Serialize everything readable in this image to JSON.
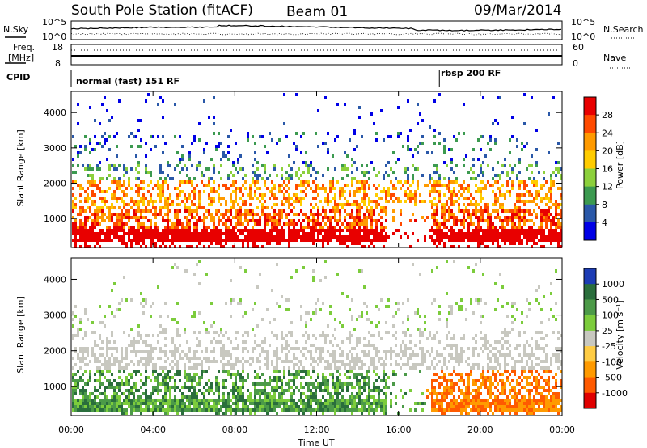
{
  "header": {
    "station": "South Pole Station (fitACF)",
    "beam": "Beam 01",
    "date": "09/Mar/2014"
  },
  "noise_panel": {
    "left_label": "N.Sky",
    "right_label": "N.Search",
    "left_ticks": [
      "10^5",
      "10^0"
    ],
    "right_ticks": [
      "10^5",
      "10^0"
    ]
  },
  "freq_panel": {
    "left_label_line1": "Freq.",
    "left_label_line2": "[MHz]",
    "right_label": "Nave",
    "left_ticks": [
      "18",
      "8"
    ],
    "right_ticks": [
      "60",
      "0"
    ]
  },
  "cpid_panel": {
    "label": "CPID",
    "programs": [
      {
        "name": "normal (fast) 151 RF",
        "start_hour": 0
      },
      {
        "name": "rbsp 200 RF",
        "start_hour": 18.0
      }
    ]
  },
  "chart_data": [
    {
      "type": "heatmap",
      "quantity": "Power",
      "ylabel": "Slant Range [km]",
      "ylim": [
        180,
        4600
      ],
      "yticks": [
        "1000",
        "2000",
        "3000",
        "4000"
      ],
      "xlim_hours": [
        0,
        24
      ],
      "colorbar_label": "Power [dB]",
      "colorbar_ticks": [
        "28",
        "24",
        "20",
        "16",
        "12",
        "8",
        "4"
      ],
      "colorbar_colors": [
        "#e80000",
        "#ff4a00",
        "#ff9a00",
        "#ffcc00",
        "#8cd03c",
        "#3c9a50",
        "#2a58a8",
        "#0000e6"
      ]
    },
    {
      "type": "heatmap",
      "quantity": "Velocity",
      "ylabel": "Slant Range [km]",
      "ylim": [
        180,
        4600
      ],
      "yticks": [
        "1000",
        "2000",
        "3000",
        "4000"
      ],
      "xlim_hours": [
        0,
        24
      ],
      "colorbar_label": "Velocity [m s⁻¹]",
      "colorbar_ticks": [
        "1000",
        "500",
        "100",
        "25",
        "-25",
        "-100",
        "-500",
        "-1000"
      ],
      "colorbar_colors": [
        "#1c3cb4",
        "#2a6e3c",
        "#4c9a48",
        "#7ccc3c",
        "#c8c8c0",
        "#ffcc44",
        "#ff9a00",
        "#ff5a00",
        "#e00000"
      ]
    }
  ],
  "xaxis": {
    "ticks": [
      "00:00",
      "04:00",
      "08:00",
      "12:00",
      "16:00",
      "20:00",
      "00:00"
    ],
    "label": "Time UT"
  }
}
